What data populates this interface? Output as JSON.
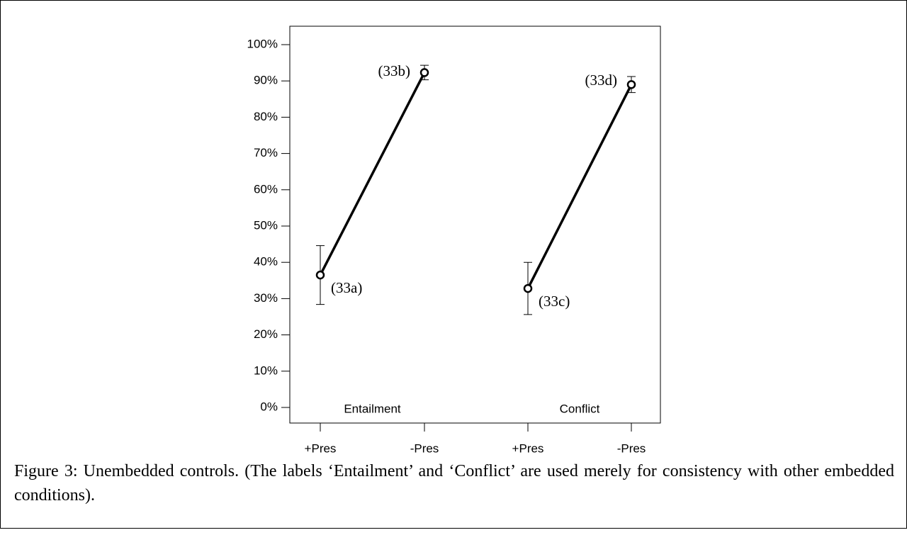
{
  "chart_data": {
    "type": "line",
    "categories": [
      "+Pres",
      "-Pres",
      "+Pres",
      "-Pres"
    ],
    "groups": [
      "Entailment",
      "Conflict"
    ],
    "series": [
      {
        "name": "Entailment",
        "color": "#000000",
        "values": [
          36.5,
          92.3,
          null,
          null
        ],
        "errors": [
          8.1,
          2.0,
          null,
          null
        ],
        "point_labels": [
          "(33a)",
          "(33b)",
          null,
          null
        ]
      },
      {
        "name": "Conflict",
        "color": "#000000",
        "values": [
          null,
          null,
          32.8,
          89.0
        ],
        "errors": [
          null,
          null,
          7.2,
          2.2
        ],
        "point_labels": [
          null,
          null,
          "(33c)",
          "(33d)"
        ]
      }
    ],
    "ylim": [
      0,
      100
    ],
    "yticks": [
      {
        "value": 0,
        "label": "0%"
      },
      {
        "value": 10,
        "label": "10%"
      },
      {
        "value": 20,
        "label": "20%"
      },
      {
        "value": 30,
        "label": "30%"
      },
      {
        "value": 40,
        "label": "40%"
      },
      {
        "value": 50,
        "label": "50%"
      },
      {
        "value": 60,
        "label": "60%"
      },
      {
        "value": 70,
        "label": "70%"
      },
      {
        "value": 80,
        "label": "80%"
      },
      {
        "value": 90,
        "label": "90%"
      },
      {
        "value": 100,
        "label": "100%"
      }
    ],
    "grid": false
  },
  "caption": "Figure 3: Unembedded controls. (The labels ‘Entailment’ and ‘Conflict’ are used merely for consistency with other embedded conditions)."
}
